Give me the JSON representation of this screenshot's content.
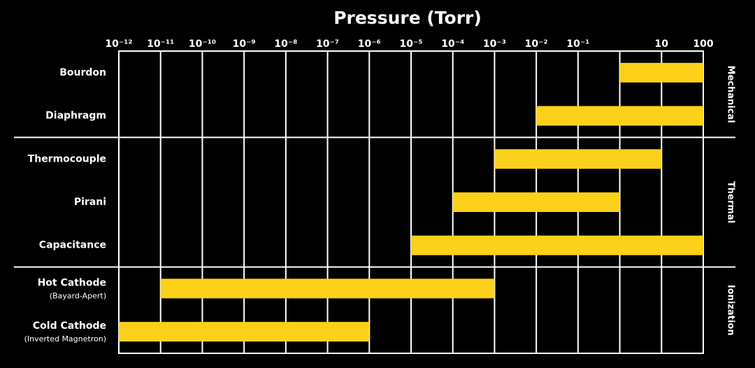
{
  "chart_data": {
    "type": "range",
    "title": "Pressure (Torr)",
    "categories": [
      "Bourdon",
      "Diaphragm",
      "Thermocouple",
      "Pirani",
      "Capacitance",
      "Hot Cathode",
      "Cold Cathode"
    ],
    "sublabels": [
      null,
      null,
      null,
      null,
      null,
      "(Bayard-Apert)",
      "(Inverted Magnetron)"
    ],
    "groups": [
      "Mechanical",
      "Mechanical",
      "Thermal",
      "Thermal",
      "Thermal",
      "Ionization",
      "Ionization"
    ],
    "ranges": [
      [
        1,
        100
      ],
      [
        0.01,
        100
      ],
      [
        0.001,
        10
      ],
      [
        0.0001,
        1
      ],
      [
        1e-05,
        100
      ],
      [
        1e-11,
        0.001
      ],
      [
        1e-12,
        1e-06
      ]
    ],
    "color": "#fdd11a",
    "xlog": true,
    "xlim": [
      1e-12,
      100
    ],
    "xticks": [
      {
        "value": 1e-12,
        "label": "10⁻¹²"
      },
      {
        "value": 1e-11,
        "label": "10⁻¹¹"
      },
      {
        "value": 1e-10,
        "label": "10⁻¹⁰"
      },
      {
        "value": 1e-09,
        "label": "10⁻⁹"
      },
      {
        "value": 1e-08,
        "label": "10⁻⁸"
      },
      {
        "value": 1e-07,
        "label": "10⁻⁷"
      },
      {
        "value": 1e-06,
        "label": "10⁻⁶"
      },
      {
        "value": 1e-05,
        "label": "10⁻⁵"
      },
      {
        "value": 0.0001,
        "label": "10⁻⁴"
      },
      {
        "value": 0.001,
        "label": "10⁻³"
      },
      {
        "value": 0.01,
        "label": "10⁻²"
      },
      {
        "value": 0.1,
        "label": "10⁻¹"
      },
      {
        "value": 1,
        "label": null
      },
      10,
      100
    ],
    "grid": true
  }
}
